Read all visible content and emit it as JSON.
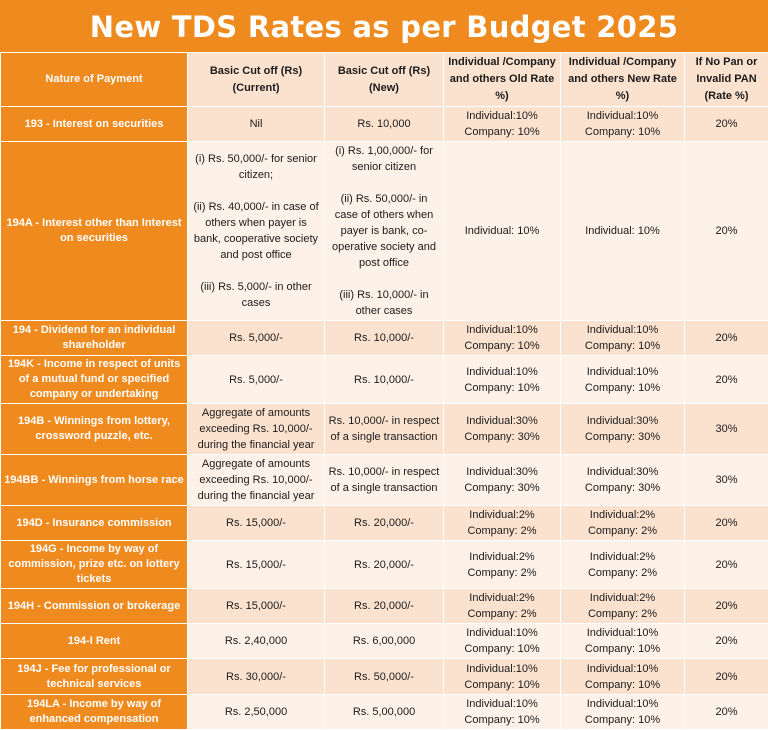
{
  "title": "New TDS Rates as per Budget 2025",
  "colors": {
    "accent_orange": "#ef8a1f",
    "row_light": "#fbe2cf",
    "row_lighter": "#fdf1e8",
    "text": "#1b1b1b"
  },
  "headers": {
    "nature": "Nature of Payment",
    "current": "Basic Cut off (Rs) (Current)",
    "new": "Basic Cut off (Rs) (New)",
    "old_rate": "Individual /Company and others Old Rate %)",
    "new_rate": "Individual /Company and others New Rate %)",
    "no_pan": "If No Pan or Invalid PAN (Rate %)"
  },
  "rows": [
    {
      "nature": "193 - Interest on securities",
      "current": [
        "Nil"
      ],
      "new": [
        "Rs. 10,000"
      ],
      "old": [
        "Individual:10%",
        "Company: 10%"
      ],
      "newrate": [
        "Individual:10%",
        "Company: 10%"
      ],
      "nopan": "20%"
    },
    {
      "nature": "194A - Interest other than Interest on securities",
      "current": [
        "(i) Rs. 50,000/- for senior citizen;",
        "",
        "(ii) Rs. 40,000/- in case of others when payer is bank, cooperative society and post office",
        "",
        "(iii) Rs. 5,000/- in other cases"
      ],
      "new": [
        "(i) Rs. 1,00,000/- for senior citizen",
        "",
        "(ii) Rs. 50,000/- in case of others when payer is bank, co-operative society and post office",
        "",
        "(iii) Rs. 10,000/- in other cases"
      ],
      "old": [
        "Individual: 10%"
      ],
      "newrate": [
        "Individual: 10%"
      ],
      "nopan": "20%"
    },
    {
      "nature": "194 - Dividend for an individual shareholder",
      "current": [
        "Rs. 5,000/-"
      ],
      "new": [
        "Rs. 10,000/-"
      ],
      "old": [
        "Individual:10%",
        "Company: 10%"
      ],
      "newrate": [
        "Individual:10%",
        "Company: 10%"
      ],
      "nopan": "20%"
    },
    {
      "nature": "194K - Income in respect of units of a mutual fund or specified company or undertaking",
      "current": [
        "Rs. 5,000/-"
      ],
      "new": [
        "Rs. 10,000/-"
      ],
      "old": [
        "Individual:10%",
        "Company: 10%"
      ],
      "newrate": [
        "Individual:10%",
        "Company: 10%"
      ],
      "nopan": "20%"
    },
    {
      "nature": "194B - Winnings from lottery, crossword puzzle, etc.",
      "current": [
        "Aggregate of amounts exceeding Rs. 10,000/- during the financial year"
      ],
      "new": [
        "Rs. 10,000/- in respect of a single transaction"
      ],
      "old": [
        "Individual:30%",
        "Company: 30%"
      ],
      "newrate": [
        "Individual:30%",
        "Company: 30%"
      ],
      "nopan": "30%"
    },
    {
      "nature": "194BB - Winnings from horse race",
      "current": [
        "Aggregate of amounts exceeding Rs. 10,000/- during the financial year"
      ],
      "new": [
        "Rs. 10,000/- in respect of a single transaction"
      ],
      "old": [
        "Individual:30%",
        "Company: 30%"
      ],
      "newrate": [
        "Individual:30%",
        "Company: 30%"
      ],
      "nopan": "30%"
    },
    {
      "nature": "194D - Insurance commission",
      "current": [
        "Rs. 15,000/-"
      ],
      "new": [
        "Rs. 20,000/-"
      ],
      "old": [
        "Individual:2%",
        "Company: 2%"
      ],
      "newrate": [
        "Individual:2%",
        "Company: 2%"
      ],
      "nopan": "20%"
    },
    {
      "nature": "194G - Income by way of commission, prize etc. on lottery tickets",
      "current": [
        "Rs. 15,000/-"
      ],
      "new": [
        "Rs. 20,000/-"
      ],
      "old": [
        "Individual:2%",
        "Company: 2%"
      ],
      "newrate": [
        "Individual:2%",
        "Company: 2%"
      ],
      "nopan": "20%"
    },
    {
      "nature": "194H - Commission or brokerage",
      "current": [
        "Rs. 15,000/-"
      ],
      "new": [
        "Rs. 20,000/-"
      ],
      "old": [
        "Individual:2%",
        "Company: 2%"
      ],
      "newrate": [
        "Individual:2%",
        "Company: 2%"
      ],
      "nopan": "20%"
    },
    {
      "nature": "194-I Rent",
      "current": [
        "Rs. 2,40,000"
      ],
      "new": [
        "Rs. 6,00,000"
      ],
      "old": [
        "Individual:10%",
        "Company: 10%"
      ],
      "newrate": [
        "Individual:10%",
        "Company: 10%"
      ],
      "nopan": "20%"
    },
    {
      "nature": "194J - Fee for professional or technical services",
      "current": [
        "Rs. 30,000/-"
      ],
      "new": [
        "Rs. 50,000/-"
      ],
      "old": [
        "Individual:10%",
        "Company: 10%"
      ],
      "newrate": [
        "Individual:10%",
        "Company: 10%"
      ],
      "nopan": "20%"
    },
    {
      "nature": "194LA - Income by way of enhanced compensation",
      "current": [
        "Rs. 2,50,000"
      ],
      "new": [
        "Rs. 5,00,000"
      ],
      "old": [
        "Individual:10%",
        "Company: 10%"
      ],
      "newrate": [
        "Individual:10%",
        "Company: 10%"
      ],
      "nopan": "20%"
    }
  ]
}
